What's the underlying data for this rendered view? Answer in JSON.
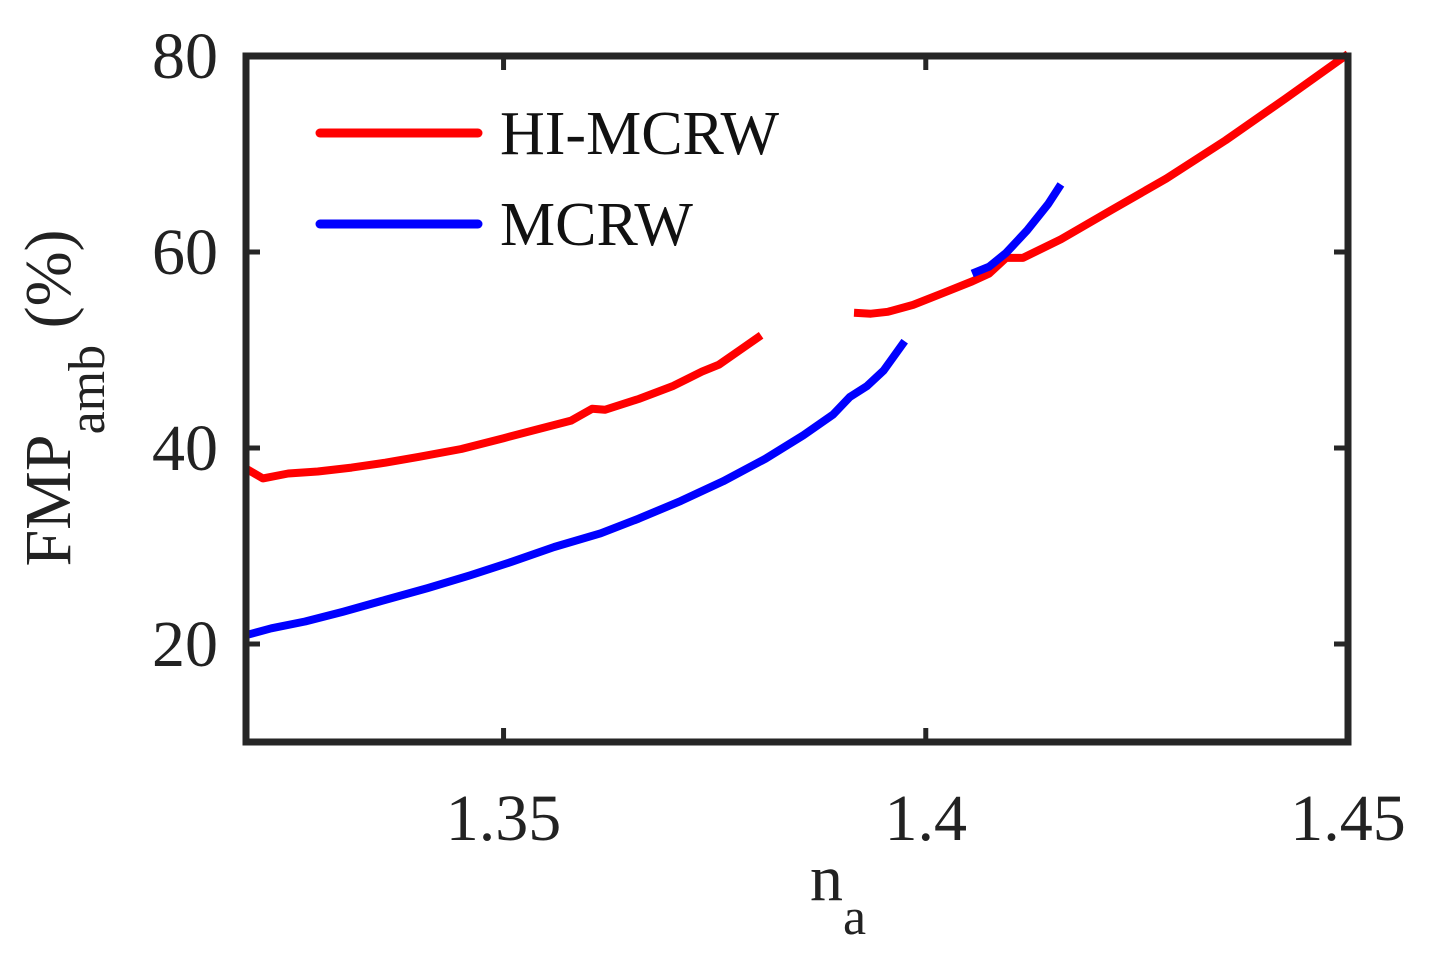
{
  "chart_data": {
    "type": "line",
    "xlabel_main": "n",
    "xlabel_sub": "a",
    "ylabel_main": "FMP",
    "ylabel_sub": "amb",
    "ylabel_suffix": " (%)",
    "xlim": [
      1.3195,
      1.45
    ],
    "ylim": [
      10,
      80
    ],
    "xticks": [
      1.35,
      1.4,
      1.45
    ],
    "xtick_labels": [
      "1.35",
      "1.4",
      "1.45"
    ],
    "yticks": [
      20,
      40,
      60,
      80
    ],
    "ytick_labels": [
      "20",
      "40",
      "60",
      "80"
    ],
    "grid": false,
    "legend_position": "top-left",
    "series": [
      {
        "name": "HI-MCRW",
        "color": "#ff0000",
        "segments": [
          [
            [
              1.3195,
              37.9
            ],
            [
              1.3215,
              36.9
            ],
            [
              1.3245,
              37.4
            ],
            [
              1.328,
              37.6
            ],
            [
              1.332,
              38.0
            ],
            [
              1.336,
              38.5
            ],
            [
              1.34,
              39.1
            ],
            [
              1.345,
              39.9
            ],
            [
              1.35,
              41.0
            ],
            [
              1.354,
              41.9
            ],
            [
              1.358,
              42.8
            ],
            [
              1.3605,
              44.0
            ],
            [
              1.362,
              43.9
            ],
            [
              1.366,
              45.0
            ],
            [
              1.37,
              46.3
            ],
            [
              1.3735,
              47.8
            ],
            [
              1.3755,
              48.5
            ],
            [
              1.378,
              50.0
            ],
            [
              1.3805,
              51.5
            ]
          ],
          [
            [
              1.3915,
              53.8
            ],
            [
              1.3935,
              53.7
            ],
            [
              1.3955,
              53.9
            ],
            [
              1.3985,
              54.6
            ],
            [
              1.402,
              55.8
            ],
            [
              1.4055,
              57.0
            ],
            [
              1.4075,
              57.8
            ],
            [
              1.4095,
              59.4
            ],
            [
              1.4115,
              59.4
            ],
            [
              1.416,
              61.3
            ],
            [
              1.422,
              64.3
            ],
            [
              1.4285,
              67.5
            ],
            [
              1.4355,
              71.4
            ],
            [
              1.4425,
              75.6
            ],
            [
              1.45,
              80.2
            ]
          ]
        ]
      },
      {
        "name": "MCRW",
        "color": "#0000ff",
        "segments": [
          [
            [
              1.3195,
              20.9
            ],
            [
              1.3225,
              21.6
            ],
            [
              1.3265,
              22.3
            ],
            [
              1.331,
              23.3
            ],
            [
              1.336,
              24.5
            ],
            [
              1.341,
              25.7
            ],
            [
              1.346,
              27.0
            ],
            [
              1.351,
              28.4
            ],
            [
              1.356,
              29.9
            ],
            [
              1.3615,
              31.3
            ],
            [
              1.366,
              32.8
            ],
            [
              1.371,
              34.6
            ],
            [
              1.376,
              36.6
            ],
            [
              1.381,
              38.9
            ],
            [
              1.3855,
              41.3
            ],
            [
              1.389,
              43.4
            ],
            [
              1.391,
              45.2
            ],
            [
              1.393,
              46.3
            ],
            [
              1.395,
              47.9
            ],
            [
              1.3975,
              50.9
            ]
          ],
          [
            [
              1.4055,
              57.8
            ],
            [
              1.4075,
              58.5
            ],
            [
              1.4095,
              59.9
            ],
            [
              1.412,
              62.2
            ],
            [
              1.4145,
              64.9
            ],
            [
              1.416,
              66.9
            ]
          ]
        ]
      }
    ]
  }
}
